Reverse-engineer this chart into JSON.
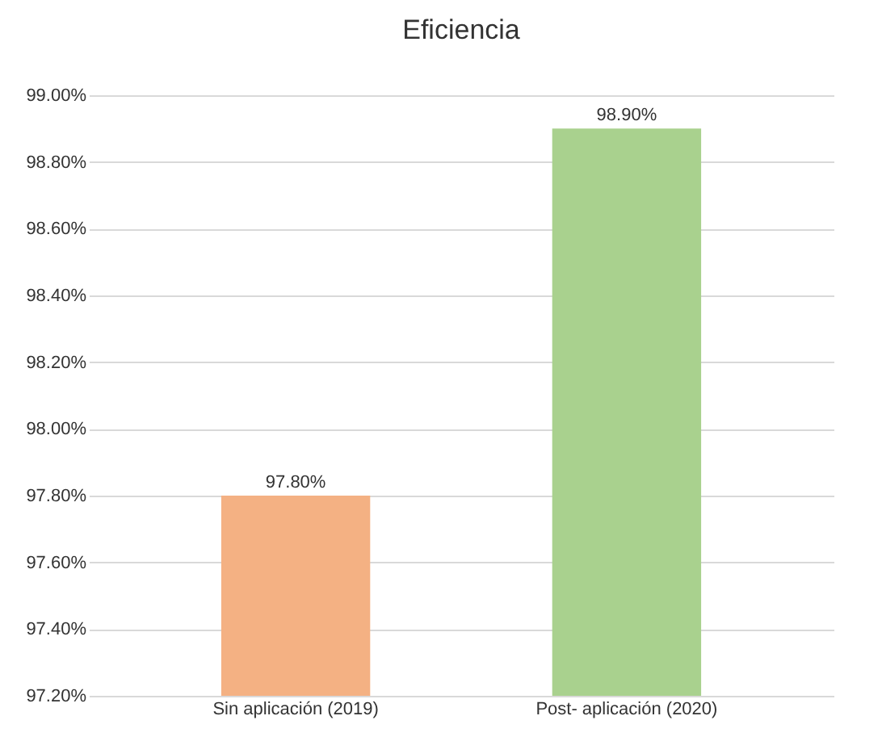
{
  "chart_data": {
    "type": "bar",
    "title": "Eficiencia",
    "categories": [
      "Sin aplicación (2019)",
      "Post- aplicación (2020)"
    ],
    "values": [
      97.8,
      98.9
    ],
    "colors": [
      "#f4b183",
      "#a9d18e"
    ],
    "value_labels": [
      "97.80%",
      "98.90%"
    ],
    "ylim": [
      97.2,
      99.0
    ],
    "yticks": [
      {
        "value": 97.2,
        "label": "97.20%"
      },
      {
        "value": 97.4,
        "label": "97.40%"
      },
      {
        "value": 97.6,
        "label": "97.60%"
      },
      {
        "value": 97.8,
        "label": "97.80%"
      },
      {
        "value": 98.0,
        "label": "98.00%"
      },
      {
        "value": 98.2,
        "label": "98.20%"
      },
      {
        "value": 98.4,
        "label": "98.40%"
      },
      {
        "value": 98.6,
        "label": "98.60%"
      },
      {
        "value": 98.8,
        "label": "98.80%"
      },
      {
        "value": 99.0,
        "label": "99.00%"
      }
    ],
    "grid": "y"
  }
}
